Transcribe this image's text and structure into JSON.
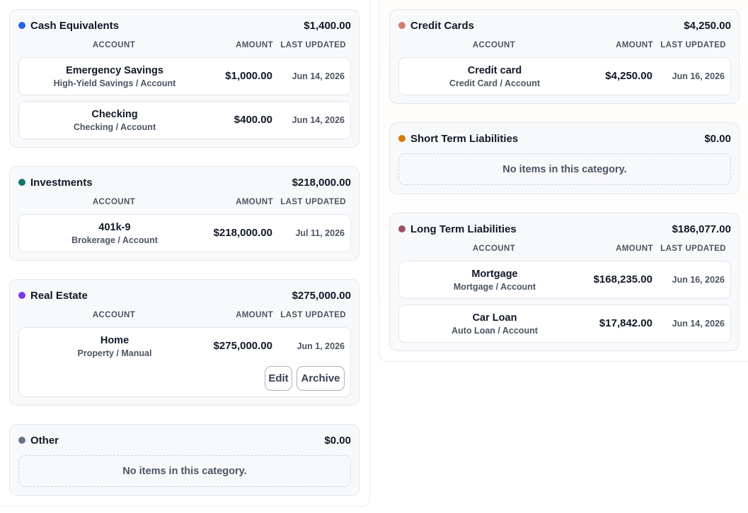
{
  "columns": {
    "account": "ACCOUNT",
    "amount": "AMOUNT",
    "updated": "LAST UPDATED"
  },
  "colors": {
    "cash": "#2563eb",
    "investments": "#0f766e",
    "real_estate": "#7c3aed",
    "other": "#64748b",
    "credit_cards": "#d27a72",
    "short_term": "#d97706",
    "long_term": "#9d4b67"
  },
  "cash": {
    "title": "Cash Equivalents",
    "total": "$1,400.00",
    "rows": [
      {
        "name": "Emergency Savings",
        "sub": "High-Yield Savings / Account",
        "amount": "$1,000.00",
        "updated": "Jun 14, 2026"
      },
      {
        "name": "Checking",
        "sub": "Checking / Account",
        "amount": "$400.00",
        "updated": "Jun 14, 2026"
      }
    ]
  },
  "investments": {
    "title": "Investments",
    "total": "$218,000.00",
    "rows": [
      {
        "name": "401k-9",
        "sub": "Brokerage / Account",
        "amount": "$218,000.00",
        "updated": "Jul 11, 2026"
      }
    ]
  },
  "real_estate": {
    "title": "Real Estate",
    "total": "$275,000.00",
    "rows": [
      {
        "name": "Home",
        "sub": "Property / Manual",
        "amount": "$275,000.00",
        "updated": "Jun 1, 2026",
        "edit_label": "Edit",
        "archive_label": "Archive"
      }
    ]
  },
  "other": {
    "title": "Other",
    "total": "$0.00",
    "empty_text": "No items in this category."
  },
  "credit_cards": {
    "title": "Credit Cards",
    "total": "$4,250.00",
    "rows": [
      {
        "name": "Credit card",
        "sub": "Credit Card / Account",
        "amount": "$4,250.00",
        "updated": "Jun 16, 2026"
      }
    ]
  },
  "short_term": {
    "title": "Short Term Liabilities",
    "total": "$0.00",
    "empty_text": "No items in this category."
  },
  "long_term": {
    "title": "Long Term Liabilities",
    "total": "$186,077.00",
    "rows": [
      {
        "name": "Mortgage",
        "sub": "Mortgage / Account",
        "amount": "$168,235.00",
        "updated": "Jun 16, 2026"
      },
      {
        "name": "Car Loan",
        "sub": "Auto Loan / Account",
        "amount": "$17,842.00",
        "updated": "Jun 14, 2026"
      }
    ]
  }
}
